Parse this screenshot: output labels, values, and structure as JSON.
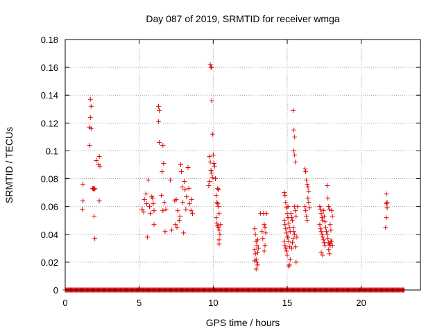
{
  "chart_data": {
    "type": "scatter",
    "title": "Day 087 of 2019, SRMTID for receiver wmga",
    "xlabel": "GPS time / hours",
    "ylabel": "SRMTID / TECUs",
    "xlim": [
      0,
      24
    ],
    "ylim": [
      0,
      0.18
    ],
    "xticks": [
      0,
      5,
      10,
      15,
      20
    ],
    "xtick_labels": [
      "0",
      "5",
      "10",
      "15",
      "20"
    ],
    "yticks": [
      0,
      0.02,
      0.04,
      0.06,
      0.08,
      0.1,
      0.12,
      0.14,
      0.16,
      0.18
    ],
    "ytick_labels": [
      "0",
      "0.02",
      "0.04",
      "0.06",
      "0.08",
      "0.1",
      "0.12",
      "0.14",
      "0.16",
      "0.18"
    ],
    "grid": true,
    "marker": "+",
    "color": "#e00000",
    "baseline": {
      "y": 0,
      "x_from": 0,
      "x_to": 22.9,
      "step": 0.05
    },
    "points": [
      [
        1.2,
        0.076
      ],
      [
        1.2,
        0.064
      ],
      [
        1.15,
        0.058
      ],
      [
        1.7,
        0.137
      ],
      [
        1.75,
        0.132
      ],
      [
        1.7,
        0.124
      ],
      [
        1.65,
        0.117
      ],
      [
        1.75,
        0.116
      ],
      [
        1.65,
        0.104
      ],
      [
        1.85,
        0.073
      ],
      [
        1.9,
        0.073
      ],
      [
        1.95,
        0.072
      ],
      [
        2.0,
        0.073
      ],
      [
        1.95,
        0.053
      ],
      [
        2.0,
        0.037
      ],
      [
        2.1,
        0.093
      ],
      [
        2.3,
        0.096
      ],
      [
        2.25,
        0.09
      ],
      [
        2.35,
        0.089
      ],
      [
        2.3,
        0.064
      ],
      [
        5.2,
        0.058
      ],
      [
        5.3,
        0.056
      ],
      [
        5.35,
        0.065
      ],
      [
        5.45,
        0.069
      ],
      [
        5.5,
        0.062
      ],
      [
        5.55,
        0.038
      ],
      [
        5.6,
        0.079
      ],
      [
        5.75,
        0.055
      ],
      [
        5.85,
        0.067
      ],
      [
        5.9,
        0.066
      ],
      [
        5.95,
        0.062
      ],
      [
        6.0,
        0.047
      ],
      [
        6.0,
        0.057
      ],
      [
        5.7,
        0.06
      ],
      [
        6.3,
        0.132
      ],
      [
        6.35,
        0.129
      ],
      [
        6.3,
        0.121
      ],
      [
        6.35,
        0.106
      ],
      [
        6.6,
        0.104
      ],
      [
        6.65,
        0.091
      ],
      [
        6.55,
        0.085
      ],
      [
        6.7,
        0.063
      ],
      [
        6.8,
        0.058
      ],
      [
        6.75,
        0.042
      ],
      [
        6.5,
        0.068
      ],
      [
        6.6,
        0.057
      ],
      [
        7.1,
        0.079
      ],
      [
        7.2,
        0.043
      ],
      [
        7.4,
        0.064
      ],
      [
        7.5,
        0.065
      ],
      [
        7.45,
        0.047
      ],
      [
        7.55,
        0.045
      ],
      [
        7.6,
        0.057
      ],
      [
        7.7,
        0.05
      ],
      [
        7.75,
        0.053
      ],
      [
        7.8,
        0.09
      ],
      [
        7.85,
        0.085
      ],
      [
        7.9,
        0.074
      ],
      [
        7.95,
        0.063
      ],
      [
        8.0,
        0.041
      ],
      [
        8.05,
        0.078
      ],
      [
        8.1,
        0.072
      ],
      [
        8.15,
        0.058
      ],
      [
        8.2,
        0.067
      ],
      [
        8.3,
        0.088
      ],
      [
        8.35,
        0.073
      ],
      [
        8.4,
        0.062
      ],
      [
        8.5,
        0.057
      ],
      [
        8.55,
        0.065
      ],
      [
        8.6,
        0.055
      ],
      [
        9.8,
        0.162
      ],
      [
        9.85,
        0.16
      ],
      [
        9.9,
        0.16
      ],
      [
        9.9,
        0.136
      ],
      [
        9.95,
        0.112
      ],
      [
        9.75,
        0.096
      ],
      [
        9.8,
        0.092
      ],
      [
        9.85,
        0.086
      ],
      [
        9.9,
        0.084
      ],
      [
        9.95,
        0.081
      ],
      [
        10.0,
        0.097
      ],
      [
        10.05,
        0.091
      ],
      [
        10.1,
        0.089
      ],
      [
        10.15,
        0.08
      ],
      [
        9.7,
        0.075
      ],
      [
        9.75,
        0.078
      ],
      [
        10.2,
        0.068
      ],
      [
        10.25,
        0.063
      ],
      [
        10.3,
        0.062
      ],
      [
        10.35,
        0.06
      ],
      [
        10.4,
        0.055
      ],
      [
        10.3,
        0.073
      ],
      [
        10.35,
        0.072
      ],
      [
        10.2,
        0.052
      ],
      [
        10.25,
        0.048
      ],
      [
        10.3,
        0.046
      ],
      [
        10.35,
        0.045
      ],
      [
        10.4,
        0.043
      ],
      [
        10.45,
        0.04
      ],
      [
        10.4,
        0.036
      ],
      [
        10.4,
        0.033
      ],
      [
        10.5,
        0.047
      ],
      [
        12.8,
        0.044
      ],
      [
        12.85,
        0.04
      ],
      [
        12.9,
        0.035
      ],
      [
        12.95,
        0.032
      ],
      [
        12.8,
        0.029
      ],
      [
        12.85,
        0.026
      ],
      [
        12.9,
        0.022
      ],
      [
        12.95,
        0.02
      ],
      [
        13.0,
        0.018
      ],
      [
        12.9,
        0.015
      ],
      [
        12.8,
        0.021
      ],
      [
        13.0,
        0.027
      ],
      [
        13.05,
        0.03
      ],
      [
        13.0,
        0.036
      ],
      [
        13.2,
        0.055
      ],
      [
        13.3,
        0.042
      ],
      [
        13.35,
        0.037
      ],
      [
        13.4,
        0.055
      ],
      [
        13.45,
        0.047
      ],
      [
        13.5,
        0.045
      ],
      [
        13.55,
        0.041
      ],
      [
        13.5,
        0.032
      ],
      [
        13.45,
        0.028
      ],
      [
        13.6,
        0.055
      ],
      [
        14.8,
        0.07
      ],
      [
        14.85,
        0.068
      ],
      [
        14.9,
        0.063
      ],
      [
        14.95,
        0.059
      ],
      [
        15.0,
        0.055
      ],
      [
        14.8,
        0.05
      ],
      [
        14.85,
        0.047
      ],
      [
        14.9,
        0.044
      ],
      [
        14.95,
        0.041
      ],
      [
        15.0,
        0.038
      ],
      [
        14.8,
        0.035
      ],
      [
        14.85,
        0.032
      ],
      [
        14.9,
        0.03
      ],
      [
        14.95,
        0.028
      ],
      [
        15.0,
        0.025
      ],
      [
        15.05,
        0.052
      ],
      [
        15.1,
        0.048
      ],
      [
        15.15,
        0.045
      ],
      [
        15.2,
        0.042
      ],
      [
        15.05,
        0.038
      ],
      [
        15.1,
        0.035
      ],
      [
        15.15,
        0.031
      ],
      [
        15.05,
        0.06
      ],
      [
        15.1,
        0.017
      ],
      [
        15.15,
        0.018
      ],
      [
        15.2,
        0.022
      ],
      [
        15.3,
        0.03
      ],
      [
        15.35,
        0.034
      ],
      [
        15.4,
        0.037
      ],
      [
        15.25,
        0.055
      ],
      [
        15.3,
        0.052
      ],
      [
        15.35,
        0.05
      ],
      [
        15.4,
        0.045
      ],
      [
        15.45,
        0.042
      ],
      [
        15.5,
        0.04
      ],
      [
        15.4,
        0.129
      ],
      [
        15.45,
        0.115
      ],
      [
        15.5,
        0.11
      ],
      [
        15.45,
        0.1
      ],
      [
        15.5,
        0.097
      ],
      [
        15.55,
        0.092
      ],
      [
        15.5,
        0.06
      ],
      [
        15.55,
        0.057
      ],
      [
        15.6,
        0.053
      ],
      [
        15.55,
        0.031
      ],
      [
        15.6,
        0.02
      ],
      [
        15.65,
        0.038
      ],
      [
        15.7,
        0.06
      ],
      [
        16.2,
        0.087
      ],
      [
        16.25,
        0.085
      ],
      [
        16.3,
        0.079
      ],
      [
        16.35,
        0.076
      ],
      [
        16.4,
        0.074
      ],
      [
        16.45,
        0.071
      ],
      [
        16.2,
        0.06
      ],
      [
        16.25,
        0.057
      ],
      [
        16.3,
        0.053
      ],
      [
        16.35,
        0.05
      ],
      [
        16.4,
        0.066
      ],
      [
        16.45,
        0.063
      ],
      [
        16.5,
        0.059
      ],
      [
        17.2,
        0.06
      ],
      [
        17.25,
        0.058
      ],
      [
        17.3,
        0.055
      ],
      [
        17.35,
        0.052
      ],
      [
        17.4,
        0.05
      ],
      [
        17.2,
        0.047
      ],
      [
        17.25,
        0.044
      ],
      [
        17.3,
        0.042
      ],
      [
        17.35,
        0.04
      ],
      [
        17.4,
        0.038
      ],
      [
        17.45,
        0.036
      ],
      [
        17.5,
        0.034
      ],
      [
        17.55,
        0.032
      ],
      [
        17.3,
        0.027
      ],
      [
        17.4,
        0.025
      ],
      [
        17.45,
        0.057
      ],
      [
        17.5,
        0.053
      ],
      [
        17.55,
        0.049
      ],
      [
        17.6,
        0.045
      ],
      [
        17.65,
        0.042
      ],
      [
        17.7,
        0.075
      ],
      [
        17.75,
        0.066
      ],
      [
        17.8,
        0.06
      ],
      [
        17.85,
        0.058
      ],
      [
        17.7,
        0.04
      ],
      [
        17.75,
        0.037
      ],
      [
        17.8,
        0.034
      ],
      [
        17.85,
        0.033
      ],
      [
        17.9,
        0.032
      ],
      [
        17.95,
        0.035
      ],
      [
        17.8,
        0.029
      ],
      [
        17.85,
        0.026
      ],
      [
        17.9,
        0.047
      ],
      [
        17.95,
        0.043
      ],
      [
        18.0,
        0.057
      ],
      [
        18.05,
        0.053
      ],
      [
        18.0,
        0.035
      ],
      [
        18.05,
        0.032
      ],
      [
        21.7,
        0.069
      ],
      [
        21.75,
        0.063
      ],
      [
        21.7,
        0.062
      ],
      [
        21.75,
        0.059
      ],
      [
        21.7,
        0.052
      ],
      [
        21.65,
        0.045
      ]
    ]
  }
}
